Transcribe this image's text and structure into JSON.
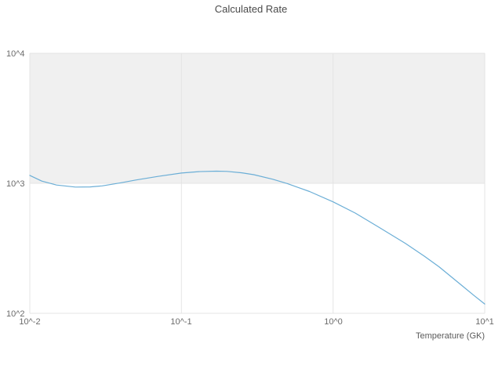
{
  "chart_data": {
    "type": "line",
    "title": "Calculated Rate",
    "xlabel": "Temperature (GK)",
    "ylabel": "",
    "x_scale": "log",
    "y_scale": "log",
    "xlim": [
      0.01,
      10
    ],
    "ylim": [
      100,
      10000
    ],
    "x_tick_labels": [
      "10^-2",
      "10^-1",
      "10^0",
      "10^1"
    ],
    "x_tick_values": [
      0.01,
      0.1,
      1,
      10
    ],
    "y_tick_labels": [
      "10^2",
      "10^3",
      "10^4"
    ],
    "y_tick_values": [
      100,
      1000,
      10000
    ],
    "grid": true,
    "legend": "none",
    "band_fill_decade": [
      1000,
      10000
    ],
    "band_color": "#f0f0f0",
    "grid_color": "#e4e4e4",
    "line_color": "#6baed6",
    "series": [
      {
        "name": "Calculated Rate",
        "x": [
          0.01,
          0.012,
          0.015,
          0.02,
          0.025,
          0.03,
          0.04,
          0.05,
          0.07,
          0.1,
          0.13,
          0.17,
          0.2,
          0.25,
          0.3,
          0.4,
          0.5,
          0.7,
          1.0,
          1.4,
          2.0,
          3.0,
          4.0,
          5.0,
          7.0,
          8.5,
          10.0
        ],
        "y": [
          1150,
          1040,
          970,
          935,
          938,
          955,
          1010,
          1060,
          1130,
          1200,
          1230,
          1240,
          1235,
          1205,
          1165,
          1075,
          995,
          865,
          720,
          590,
          460,
          345,
          275,
          228,
          165,
          137,
          118
        ]
      }
    ]
  }
}
